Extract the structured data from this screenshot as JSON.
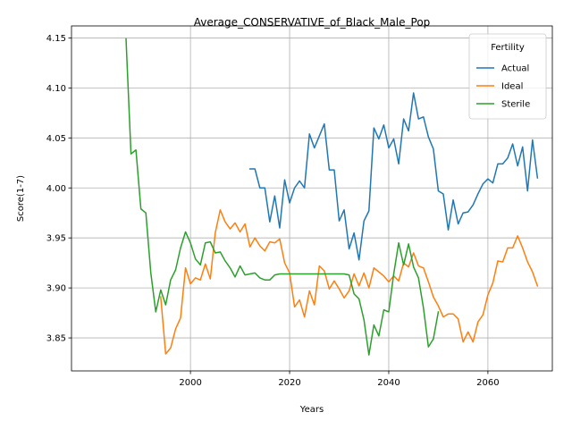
{
  "chart_data": {
    "type": "line",
    "title": "Average_CONSERVATIVE_of_Black_Male_Pop",
    "xlabel": "Years",
    "ylabel": "Score(1-7)",
    "xlim": [
      1976,
      2073
    ],
    "ylim": [
      3.817,
      4.162
    ],
    "xticks": [
      2000,
      2020,
      2040,
      2060
    ],
    "yticks": [
      3.85,
      3.9,
      3.95,
      4.0,
      4.05,
      4.1,
      4.15
    ],
    "ytick_labels": [
      "3.85",
      "3.90",
      "3.95",
      "4.00",
      "4.05",
      "4.10",
      "4.15"
    ],
    "grid": true,
    "legend": {
      "title": "Fertility",
      "position": "top-right"
    },
    "series": [
      {
        "name": "Actual",
        "color": "#1f77b4",
        "x": [
          2012,
          2013,
          2014,
          2015,
          2016,
          2017,
          2018,
          2019,
          2020,
          2021,
          2022,
          2023,
          2024,
          2025,
          2026,
          2027,
          2028,
          2029,
          2030,
          2031,
          2032,
          2033,
          2034,
          2035,
          2036,
          2037,
          2038,
          2039,
          2040,
          2041,
          2042,
          2043,
          2044,
          2045,
          2046,
          2047,
          2048,
          2049,
          2050,
          2051,
          2052,
          2053,
          2054,
          2055,
          2056,
          2057,
          2058,
          2059,
          2060,
          2061,
          2062,
          2063,
          2064,
          2065,
          2066,
          2067,
          2068,
          2069,
          2070
        ],
        "values": [
          4.019,
          4.019,
          4.0,
          4.0,
          3.966,
          3.992,
          3.96,
          4.008,
          3.985,
          4.0,
          4.007,
          4.0,
          4.054,
          4.04,
          4.052,
          4.064,
          4.018,
          4.018,
          3.967,
          3.978,
          3.939,
          3.955,
          3.928,
          3.967,
          3.977,
          4.06,
          4.049,
          4.063,
          4.04,
          4.049,
          4.024,
          4.069,
          4.057,
          4.095,
          4.069,
          4.071,
          4.051,
          4.039,
          3.997,
          3.994,
          3.958,
          3.988,
          3.964,
          3.975,
          3.976,
          3.983,
          3.994,
          4.004,
          4.009,
          4.005,
          4.024,
          4.024,
          4.03,
          4.044,
          4.022,
          4.041,
          3.997,
          4.048,
          4.01
        ]
      },
      {
        "name": "Ideal",
        "color": "#ff7f0e",
        "x": [
          1994,
          1995,
          1996,
          1997,
          1998,
          1999,
          2000,
          2001,
          2002,
          2003,
          2004,
          2005,
          2006,
          2007,
          2008,
          2009,
          2010,
          2011,
          2012,
          2013,
          2014,
          2015,
          2016,
          2017,
          2018,
          2019,
          2020,
          2021,
          2022,
          2023,
          2024,
          2025,
          2026,
          2027,
          2028,
          2029,
          2030,
          2031,
          2032,
          2033,
          2034,
          2035,
          2036,
          2037,
          2038,
          2039,
          2040,
          2041,
          2042,
          2043,
          2044,
          2045,
          2046,
          2047,
          2048,
          2049,
          2050,
          2051,
          2052,
          2053,
          2054,
          2055,
          2056,
          2057,
          2058,
          2059,
          2060,
          2061,
          2062,
          2063,
          2064,
          2065,
          2066,
          2067,
          2068,
          2069,
          2070
        ],
        "values": [
          3.891,
          3.834,
          3.84,
          3.859,
          3.87,
          3.92,
          3.904,
          3.91,
          3.908,
          3.924,
          3.909,
          3.955,
          3.978,
          3.966,
          3.959,
          3.965,
          3.956,
          3.964,
          3.941,
          3.95,
          3.942,
          3.937,
          3.946,
          3.945,
          3.949,
          3.925,
          3.915,
          3.881,
          3.888,
          3.871,
          3.897,
          3.883,
          3.922,
          3.917,
          3.899,
          3.907,
          3.899,
          3.89,
          3.897,
          3.914,
          3.902,
          3.915,
          3.9,
          3.92,
          3.916,
          3.912,
          3.906,
          3.912,
          3.907,
          3.925,
          3.921,
          3.935,
          3.922,
          3.92,
          3.906,
          3.891,
          3.882,
          3.871,
          3.874,
          3.874,
          3.869,
          3.846,
          3.856,
          3.846,
          3.866,
          3.873,
          3.893,
          3.905,
          3.927,
          3.926,
          3.94,
          3.94,
          3.952,
          3.94,
          3.926,
          3.916,
          3.902
        ]
      },
      {
        "name": "Sterile",
        "color": "#2ca02c",
        "x": [
          1987,
          1988,
          1989,
          1990,
          1991,
          1992,
          1993,
          1994,
          1995,
          1996,
          1997,
          1998,
          1999,
          2000,
          2001,
          2002,
          2003,
          2004,
          2005,
          2006,
          2007,
          2008,
          2009,
          2010,
          2011,
          2012,
          2013,
          2014,
          2015,
          2016,
          2017,
          2018,
          2019,
          2020,
          2021,
          2022,
          2023,
          2024,
          2025,
          2026,
          2027,
          2028,
          2029,
          2030,
          2031,
          2032,
          2033,
          2034,
          2035,
          2036,
          2037,
          2038,
          2039,
          2040,
          2041,
          2042,
          2043,
          2044,
          2045,
          2046,
          2047,
          2048,
          2049,
          2050
        ],
        "values": [
          4.149,
          4.034,
          4.038,
          3.979,
          3.975,
          3.915,
          3.876,
          3.898,
          3.883,
          3.908,
          3.918,
          3.94,
          3.956,
          3.945,
          3.929,
          3.923,
          3.945,
          3.946,
          3.935,
          3.936,
          3.927,
          3.92,
          3.911,
          3.922,
          3.913,
          3.914,
          3.915,
          3.91,
          3.908,
          3.908,
          3.913,
          3.914,
          3.914,
          3.914,
          3.914,
          3.914,
          3.914,
          3.914,
          3.914,
          3.914,
          3.914,
          3.914,
          3.914,
          3.914,
          3.914,
          3.913,
          3.894,
          3.889,
          3.868,
          3.833,
          3.863,
          3.852,
          3.878,
          3.876,
          3.914,
          3.945,
          3.923,
          3.944,
          3.921,
          3.91,
          3.88,
          3.841,
          3.849,
          3.876
        ]
      }
    ]
  }
}
